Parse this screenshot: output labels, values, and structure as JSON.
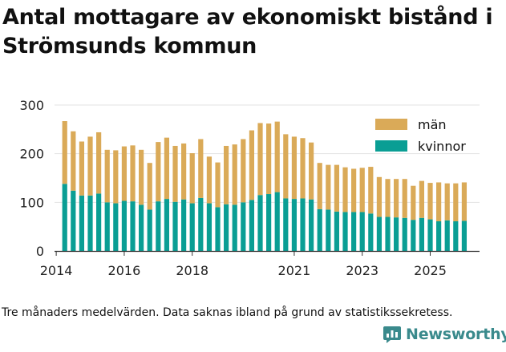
{
  "title": "Antal mottagare av ekonomiskt bistånd i Strömsunds kommun",
  "caption": "Tre månaders medelvärden. Data saknas ibland på grund av statistikssekretess.",
  "brand": "Newsworthy",
  "colors": {
    "man": "#DAAA58",
    "kvinnor": "#0A9E94",
    "grid": "#e3e3e3",
    "axis": "#333333",
    "brand": "#3a8a8c"
  },
  "chart_data": {
    "type": "bar",
    "stacked": true,
    "title": "Antal mottagare av ekonomiskt bistånd i Strömsunds kommun",
    "xlabel": "",
    "ylabel": "",
    "ylim": [
      0,
      300
    ],
    "y_ticks": [
      "0",
      "100",
      "200",
      "300"
    ],
    "x_ticks": [
      {
        "label": "2014",
        "at": 2014
      },
      {
        "label": "2016",
        "at": 2016
      },
      {
        "label": "2018",
        "at": 2018
      },
      {
        "label": "2021",
        "at": 2021
      },
      {
        "label": "2023",
        "at": 2023
      },
      {
        "label": "2025",
        "at": 2025
      }
    ],
    "grid": true,
    "legend_position": "top-right",
    "x": [
      2014.25,
      2014.5,
      2014.75,
      2015.0,
      2015.25,
      2015.5,
      2015.75,
      2016.0,
      2016.25,
      2016.5,
      2016.75,
      2017.0,
      2017.25,
      2017.5,
      2017.75,
      2018.0,
      2018.25,
      2018.5,
      2018.75,
      2019.0,
      2019.25,
      2019.5,
      2019.75,
      2020.0,
      2020.25,
      2020.5,
      2020.75,
      2021.0,
      2021.25,
      2021.5,
      2021.75,
      2022.0,
      2022.25,
      2022.5,
      2022.75,
      2023.0,
      2023.25,
      2023.5,
      2023.75,
      2024.0,
      2024.25,
      2024.5,
      2024.75,
      2025.0,
      2025.25,
      2025.5,
      2025.75,
      2026.0
    ],
    "series": [
      {
        "name": "kvinnor",
        "values": [
          138,
          124,
          114,
          114,
          118,
          100,
          98,
          103,
          102,
          95,
          85,
          102,
          107,
          101,
          106,
          98,
          109,
          98,
          90,
          96,
          95,
          100,
          105,
          115,
          117,
          121,
          108,
          107,
          108,
          106,
          86,
          85,
          81,
          80,
          80,
          80,
          77,
          70,
          70,
          69,
          68,
          64,
          68,
          65,
          61,
          63,
          61,
          62
        ]
      },
      {
        "name": "män",
        "values": [
          129,
          122,
          111,
          121,
          126,
          108,
          109,
          112,
          115,
          113,
          96,
          122,
          126,
          115,
          115,
          103,
          121,
          96,
          92,
          120,
          124,
          130,
          143,
          148,
          145,
          145,
          132,
          128,
          124,
          117,
          95,
          92,
          96,
          92,
          89,
          91,
          96,
          82,
          78,
          79,
          80,
          70,
          76,
          75,
          80,
          76,
          78,
          79
        ]
      }
    ],
    "legend": [
      {
        "name": "män",
        "label": "män"
      },
      {
        "name": "kvinnor",
        "label": "kvinnor"
      }
    ]
  }
}
